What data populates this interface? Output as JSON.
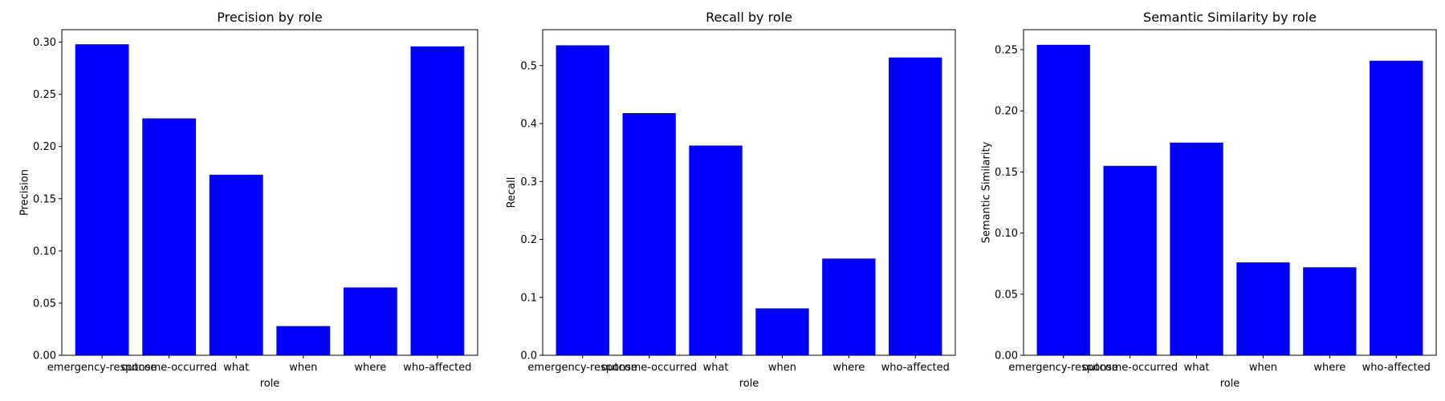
{
  "chart_data": [
    {
      "type": "bar",
      "title": "Precision by role",
      "xlabel": "role",
      "ylabel": "Precision",
      "categories": [
        "emergency-response",
        "outcome-occurred",
        "what",
        "when",
        "where",
        "who-affected"
      ],
      "values": [
        0.298,
        0.227,
        0.173,
        0.028,
        0.065,
        0.296
      ],
      "ylim": [
        0,
        0.312
      ],
      "yticks": [
        "0.00",
        "0.05",
        "0.10",
        "0.15",
        "0.20",
        "0.25",
        "0.30"
      ],
      "bar_color": "#0000ff",
      "grid": false,
      "legend": null
    },
    {
      "type": "bar",
      "title": "Recall by role",
      "xlabel": "role",
      "ylabel": "Recall",
      "categories": [
        "emergency-response",
        "outcome-occurred",
        "what",
        "when",
        "where",
        "who-affected"
      ],
      "values": [
        0.535,
        0.418,
        0.362,
        0.081,
        0.167,
        0.514
      ],
      "ylim": [
        0,
        0.562
      ],
      "yticks": [
        "0.0",
        "0.1",
        "0.2",
        "0.3",
        "0.4",
        "0.5"
      ],
      "bar_color": "#0000ff",
      "grid": false,
      "legend": null
    },
    {
      "type": "bar",
      "title": "Semantic Similarity by role",
      "xlabel": "role",
      "ylabel": "Semantic Similarity",
      "categories": [
        "emergency-response",
        "outcome-occurred",
        "what",
        "when",
        "where",
        "who-affected"
      ],
      "values": [
        0.254,
        0.155,
        0.174,
        0.076,
        0.072,
        0.241
      ],
      "ylim": [
        0,
        0.2664
      ],
      "yticks": [
        "0.00",
        "0.05",
        "0.10",
        "0.15",
        "0.20",
        "0.25"
      ],
      "bar_color": "#0000ff",
      "grid": false,
      "legend": null
    }
  ]
}
